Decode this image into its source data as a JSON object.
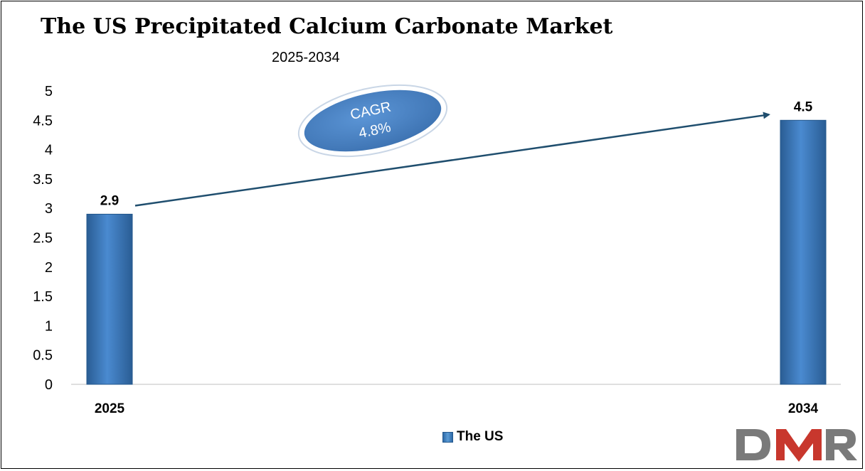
{
  "title": "The US Precipitated Calcium Carbonate Market",
  "subtitle": "2025-2034",
  "cagr": {
    "label": "CAGR",
    "value": "4.8%"
  },
  "legend": {
    "label": "The US"
  },
  "logo": {
    "text": "DMR"
  },
  "colors": {
    "bar": "#3e7cc0",
    "bar_dark": "#2a5d94",
    "arrow": "#1f4e6e",
    "cagr_fill": "#4a82c4",
    "logo_gray": "#7a7a7a",
    "logo_red": "#c8372d"
  },
  "chart_data": {
    "type": "bar",
    "categories": [
      "2025",
      "2034"
    ],
    "series": [
      {
        "name": "The US",
        "values": [
          2.9,
          4.5
        ]
      }
    ],
    "data_labels": [
      "2.9",
      "4.5"
    ],
    "ylim": [
      0,
      5
    ],
    "yticks": [
      "0",
      "0.5",
      "1",
      "1.5",
      "2",
      "2.5",
      "3",
      "3.5",
      "4",
      "4.5",
      "5"
    ],
    "xlabel": "",
    "ylabel": "",
    "grid": false,
    "legend_position": "bottom"
  }
}
